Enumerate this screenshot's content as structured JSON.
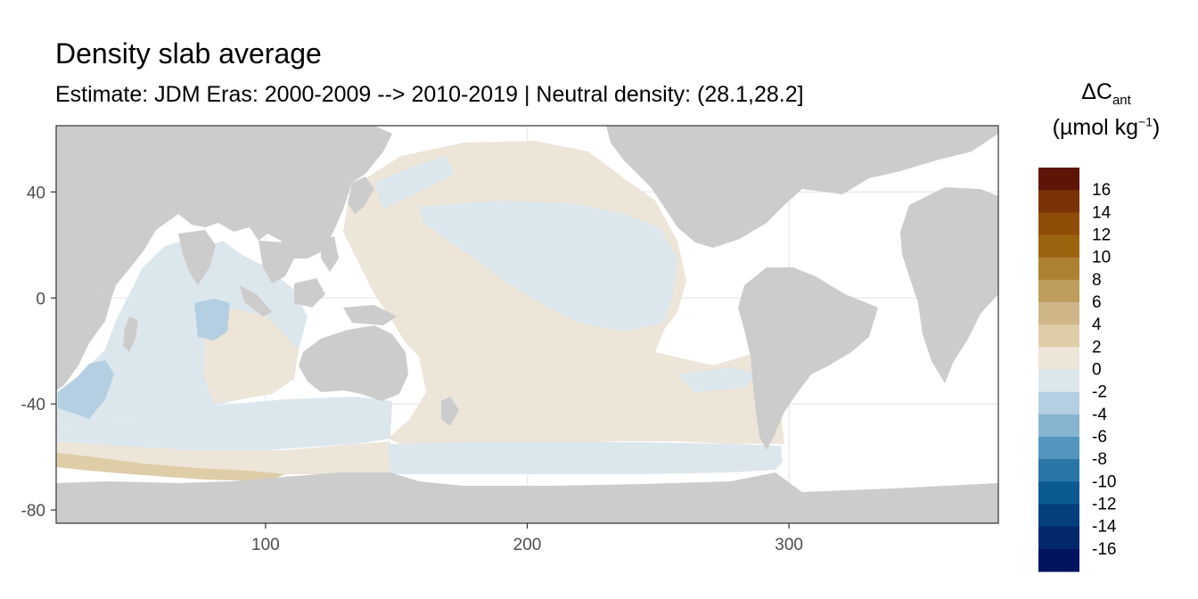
{
  "chart_data": {
    "type": "heatmap",
    "title": "Density slab average",
    "subtitle": "Estimate: JDM Eras: 2000-2009 --> 2010-2019 | Neutral density: (28.1,28.2]",
    "legend": {
      "title_prefix": "ΔC",
      "title_sub": "ant",
      "unit_open": "(µmol kg",
      "unit_sup": "−1",
      "unit_close": ")",
      "placement": "right",
      "labels": [
        "16",
        "14",
        "12",
        "10",
        "8",
        "6",
        "4",
        "2",
        "0",
        "-2",
        "-4",
        "-6",
        "-8",
        "-10",
        "-12",
        "-14",
        "-16"
      ],
      "colors": [
        "#5e1507",
        "#7a3206",
        "#8f4d07",
        "#9b630e",
        "#ad8132",
        "#bf9d5d",
        "#cfb689",
        "#dfcda8",
        "#ede5d8",
        "#dce7ed",
        "#b4cfe1",
        "#86b4d0",
        "#5395bd",
        "#2a76a8",
        "#0b5b92",
        "#063f7d",
        "#04276b",
        "#021360"
      ]
    },
    "x_axis": {
      "ticks": [
        "100",
        "200",
        "300"
      ],
      "tick_values": [
        100,
        200,
        300
      ],
      "range": [
        20,
        380
      ]
    },
    "y_axis": {
      "ticks": [
        "40",
        "0",
        "-40",
        "-80"
      ],
      "tick_values": [
        40,
        0,
        -40,
        -80
      ],
      "range": [
        -85,
        65
      ]
    },
    "grid": true,
    "colors": {
      "land": "#cccccc",
      "no_data": "#ffffff",
      "panel_border": "#333333",
      "grid": "#ebebeb"
    }
  }
}
